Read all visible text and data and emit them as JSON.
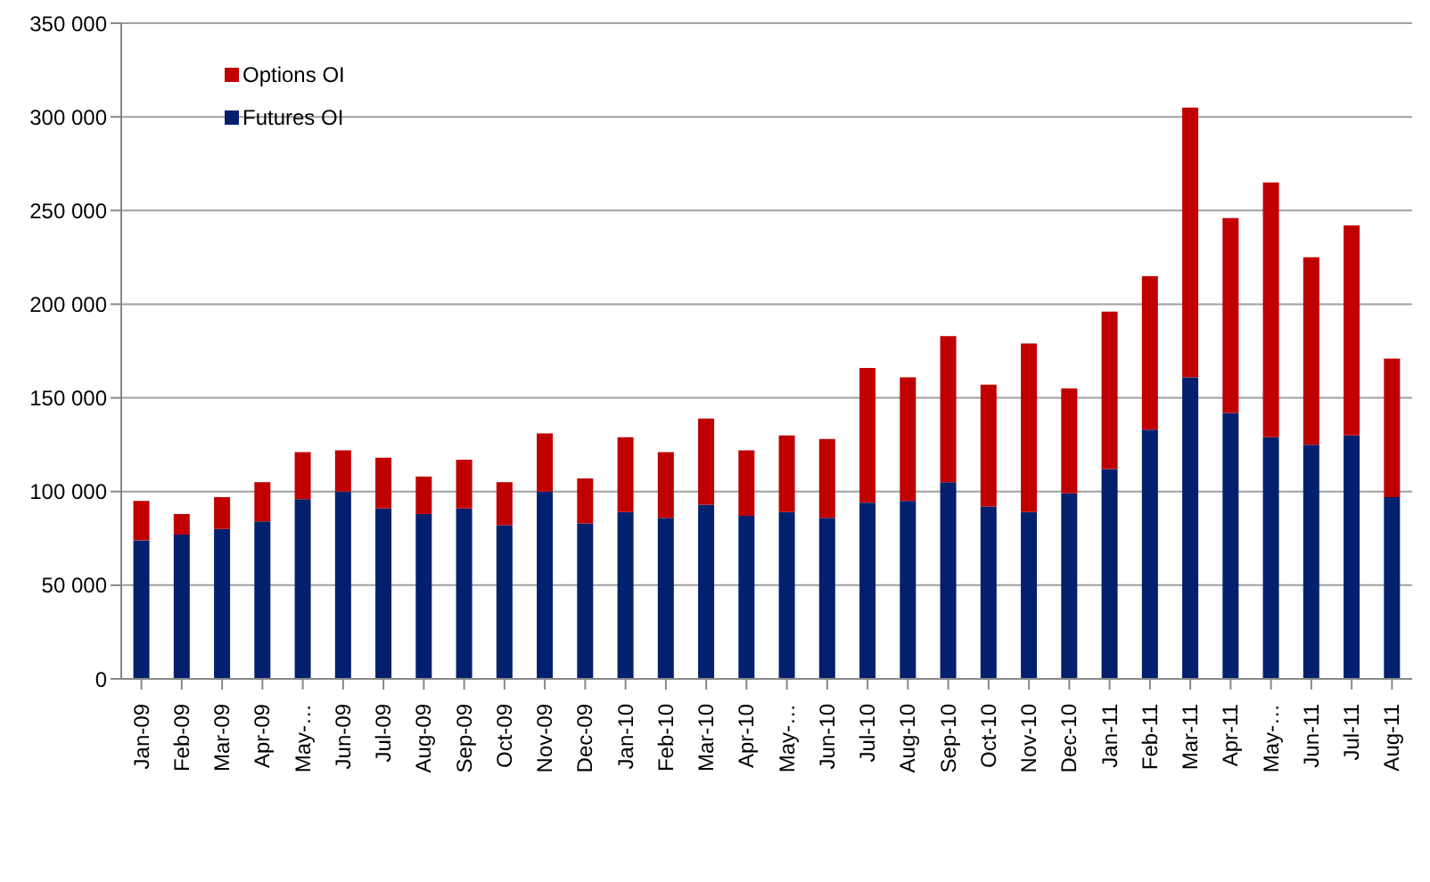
{
  "chart_data": {
    "type": "bar",
    "stacked": true,
    "categories": [
      "Jan-09",
      "Feb-09",
      "Mar-09",
      "Apr-09",
      "May-…",
      "Jun-09",
      "Jul-09",
      "Aug-09",
      "Sep-09",
      "Oct-09",
      "Nov-09",
      "Dec-09",
      "Jan-10",
      "Feb-10",
      "Mar-10",
      "Apr-10",
      "May-…",
      "Jun-10",
      "Jul-10",
      "Aug-10",
      "Sep-10",
      "Oct-10",
      "Nov-10",
      "Dec-10",
      "Jan-11",
      "Feb-11",
      "Mar-11",
      "Apr-11",
      "May-…",
      "Jun-11",
      "Jul-11",
      "Aug-11"
    ],
    "series": [
      {
        "name": "Futures OI",
        "color": "#03206f",
        "values": [
          74000,
          77000,
          80000,
          84000,
          96000,
          100000,
          91000,
          88000,
          91000,
          82000,
          100000,
          83000,
          89000,
          86000,
          93000,
          87000,
          89000,
          86000,
          94000,
          95000,
          105000,
          92000,
          89000,
          99000,
          112000,
          133000,
          161000,
          142000,
          129000,
          125000,
          130000,
          97000
        ]
      },
      {
        "name": "Options OI",
        "color": "#c00000",
        "values": [
          21000,
          11000,
          17000,
          21000,
          25000,
          22000,
          27000,
          20000,
          26000,
          23000,
          31000,
          24000,
          40000,
          35000,
          46000,
          35000,
          41000,
          42000,
          72000,
          66000,
          78000,
          65000,
          90000,
          56000,
          84000,
          82000,
          144000,
          104000,
          136000,
          100000,
          112000,
          74000
        ]
      }
    ],
    "ylim": [
      0,
      350000
    ],
    "yticks": [
      0,
      {
        "value": 50000,
        "label": "50 000"
      },
      {
        "value": 100000,
        "label": "100 000"
      },
      {
        "value": 150000,
        "label": "150 000"
      },
      {
        "value": 200000,
        "label": "200 000"
      },
      {
        "value": 250000,
        "label": "250 000"
      },
      {
        "value": 300000,
        "label": "300 000"
      },
      {
        "value": 350000,
        "label": "350 000"
      }
    ],
    "grid": "y",
    "legend": "top left"
  }
}
